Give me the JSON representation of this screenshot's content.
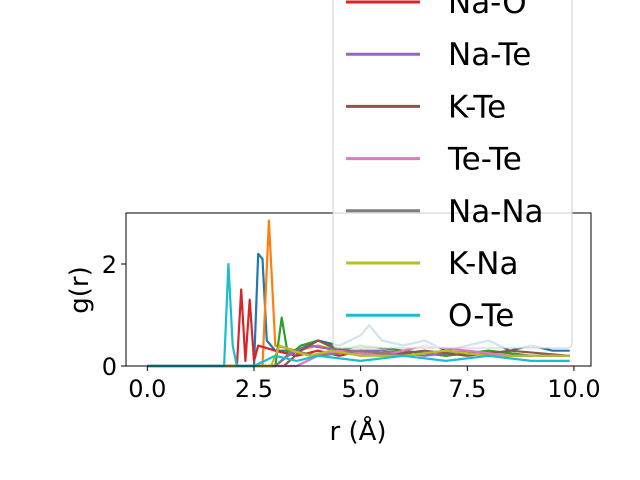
{
  "chart_data": {
    "type": "line",
    "xlabel": "r (Å)",
    "ylabel": "g(r)",
    "xlim": [
      -0.5,
      10.4
    ],
    "ylim": [
      0,
      3.0
    ],
    "xticks": [
      0.0,
      2.5,
      5.0,
      7.5,
      10.0
    ],
    "xtick_labels": [
      "0.0",
      "2.5",
      "5.0",
      "7.5",
      "10.0"
    ],
    "yticks": [
      0,
      2
    ],
    "ytick_labels": [
      "0",
      "2"
    ],
    "grid": false,
    "legend_position": "upper-right",
    "legend_visible_names": [
      "Na-O",
      "Na-Te",
      "K-Te",
      "Te-Te",
      "Na-Na",
      "K-Na",
      "O-Te"
    ],
    "series": [
      {
        "name": "",
        "color": "#1f77b4",
        "x": [
          0.0,
          2.5,
          2.6,
          2.7,
          2.8,
          3.0,
          3.5,
          4.0,
          4.5,
          5.0,
          5.2,
          5.5,
          6.0,
          6.5,
          7.0,
          7.5,
          8.0,
          8.5,
          9.0,
          9.5,
          9.9
        ],
        "y": [
          0,
          0,
          2.2,
          2.1,
          0.5,
          0.3,
          0.3,
          0.5,
          0.4,
          0.6,
          0.8,
          0.5,
          0.4,
          0.5,
          0.3,
          0.4,
          0.5,
          0.3,
          0.4,
          0.3,
          0.3
        ]
      },
      {
        "name": "",
        "color": "#ff7f0e",
        "x": [
          0.0,
          2.7,
          2.85,
          3.0,
          3.5,
          4.0,
          5.0,
          6.0,
          7.0,
          8.0,
          9.0,
          9.9
        ],
        "y": [
          0,
          0,
          2.85,
          0.4,
          0.3,
          0.4,
          0.2,
          0.3,
          0.2,
          0.3,
          0.2,
          0.2
        ]
      },
      {
        "name": "",
        "color": "#2ca02c",
        "x": [
          0.0,
          3.0,
          3.15,
          3.3,
          3.6,
          4.0,
          4.5,
          5.0,
          6.0,
          7.0,
          8.0,
          9.0,
          9.9
        ],
        "y": [
          0,
          0,
          0.95,
          0.2,
          0.4,
          0.5,
          0.3,
          0.4,
          0.3,
          0.2,
          0.3,
          0.2,
          0.2
        ]
      },
      {
        "name": "Na-O",
        "color": "#d62728",
        "x": [
          0.0,
          2.1,
          2.2,
          2.3,
          2.4,
          2.5,
          2.6,
          3.0,
          3.5,
          4.0,
          4.5,
          5.0,
          6.0,
          7.0,
          8.0,
          9.0,
          9.9
        ],
        "y": [
          0,
          0,
          1.5,
          0.1,
          1.3,
          0.1,
          0.4,
          0.3,
          0.2,
          0.3,
          0.2,
          0.3,
          0.2,
          0.3,
          0.2,
          0.2,
          0.2
        ]
      },
      {
        "name": "Na-Te",
        "color": "#9467bd",
        "x": [
          0.0,
          3.0,
          3.3,
          3.8,
          4.5,
          5.5,
          6.5,
          7.5,
          8.5,
          9.9
        ],
        "y": [
          0,
          0,
          0.2,
          0.4,
          0.3,
          0.3,
          0.2,
          0.3,
          0.2,
          0.2
        ]
      },
      {
        "name": "K-Te",
        "color": "#8c564b",
        "x": [
          0.0,
          3.2,
          3.6,
          4.0,
          4.6,
          5.5,
          6.5,
          7.5,
          8.5,
          9.9
        ],
        "y": [
          0,
          0,
          0.3,
          0.5,
          0.3,
          0.2,
          0.3,
          0.2,
          0.3,
          0.2
        ]
      },
      {
        "name": "Te-Te",
        "color": "#e377c2",
        "x": [
          0.0,
          3.5,
          4.0,
          4.5,
          5.5,
          6.5,
          7.5,
          8.5,
          9.9
        ],
        "y": [
          0,
          0,
          0.2,
          0.3,
          0.2,
          0.4,
          0.3,
          0.2,
          0.2
        ]
      },
      {
        "name": "Na-Na",
        "color": "#7f7f7f",
        "x": [
          0.0,
          3.0,
          3.4,
          4.0,
          5.0,
          6.0,
          7.0,
          8.0,
          9.0,
          9.9
        ],
        "y": [
          0,
          0,
          0.3,
          0.2,
          0.3,
          0.2,
          0.3,
          0.2,
          0.2,
          0.2
        ]
      },
      {
        "name": "K-Na",
        "color": "#bcbd22",
        "x": [
          0.0,
          2.9,
          3.1,
          3.4,
          3.8,
          4.3,
          5.0,
          6.0,
          7.0,
          8.0,
          9.0,
          9.9
        ],
        "y": [
          0,
          0,
          0.4,
          0.3,
          0.2,
          0.3,
          0.2,
          0.2,
          0.3,
          0.2,
          0.2,
          0.2
        ]
      },
      {
        "name": "O-Te",
        "color": "#17becf",
        "x": [
          0.0,
          1.8,
          1.9,
          2.0,
          2.1,
          2.5,
          3.0,
          3.5,
          4.0,
          5.0,
          6.0,
          7.0,
          8.0,
          9.0,
          9.9
        ],
        "y": [
          0,
          0,
          2.0,
          0.4,
          0,
          0,
          0.2,
          0.1,
          0.2,
          0.1,
          0.2,
          0.1,
          0.2,
          0.1,
          0.1
        ]
      }
    ]
  }
}
